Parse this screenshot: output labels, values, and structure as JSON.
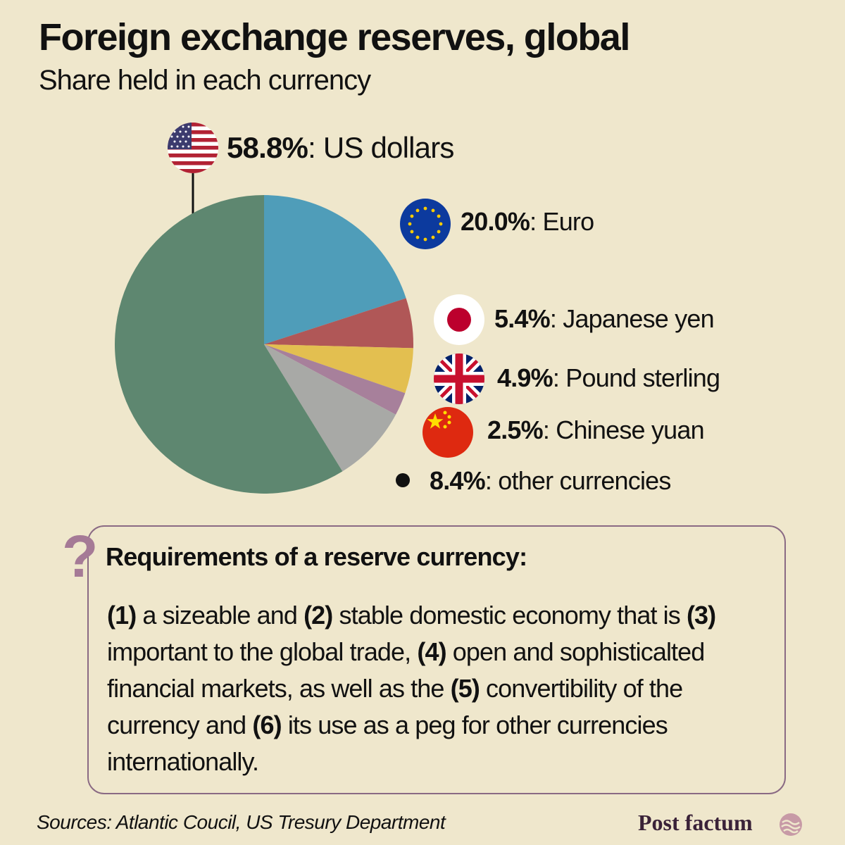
{
  "title": "Foreign exchange reserves, global",
  "subtitle": "Share held in each currency",
  "colors": {
    "background": "#efe7cc",
    "usd": "#5e8770",
    "eur": "#4f9db9",
    "jpy": "#b05757",
    "gbp": "#e3bf50",
    "cny": "#a7809b",
    "other": "#a8a9a6",
    "accent": "#a57a96"
  },
  "chart_data": {
    "type": "pie",
    "slices": [
      {
        "name": "Euro",
        "value": 20.0,
        "label": "20.0%",
        "color": "#4f9db9",
        "icon": "eu-flag-icon"
      },
      {
        "name": "Japanese yen",
        "value": 5.4,
        "label": "5.4%",
        "color": "#b05757",
        "icon": "japan-flag-icon"
      },
      {
        "name": "Pound sterling",
        "value": 4.9,
        "label": "4.9%",
        "color": "#e3bf50",
        "icon": "uk-flag-icon"
      },
      {
        "name": "Chinese yuan",
        "value": 2.5,
        "label": "2.5%",
        "color": "#a7809b",
        "icon": "china-flag-icon"
      },
      {
        "name": "other currencies",
        "value": 8.4,
        "label": "8.4%",
        "color": "#a8a9a6",
        "icon": "bullet-icon"
      },
      {
        "name": "US dollars",
        "value": 58.8,
        "label": "58.8%",
        "color": "#5e8770",
        "icon": "us-flag-icon"
      }
    ]
  },
  "requirements": {
    "question_mark": "?",
    "title": "Requirements of a reserve currency:",
    "items": [
      "(1)",
      "(2)",
      "(3)",
      "(4)",
      "(5)",
      "(6)"
    ],
    "segments": [
      " a sizeable and ",
      " stable domestic economy that is ",
      " important to the global trade, ",
      " open and sophisticalted financial markets, as well as the ",
      " convertibility of the currency and ",
      " its use as a peg for other currencies internationally."
    ]
  },
  "sources": "Sources: Atlantic Coucil, US Tresury Department",
  "brand": "Post factum"
}
